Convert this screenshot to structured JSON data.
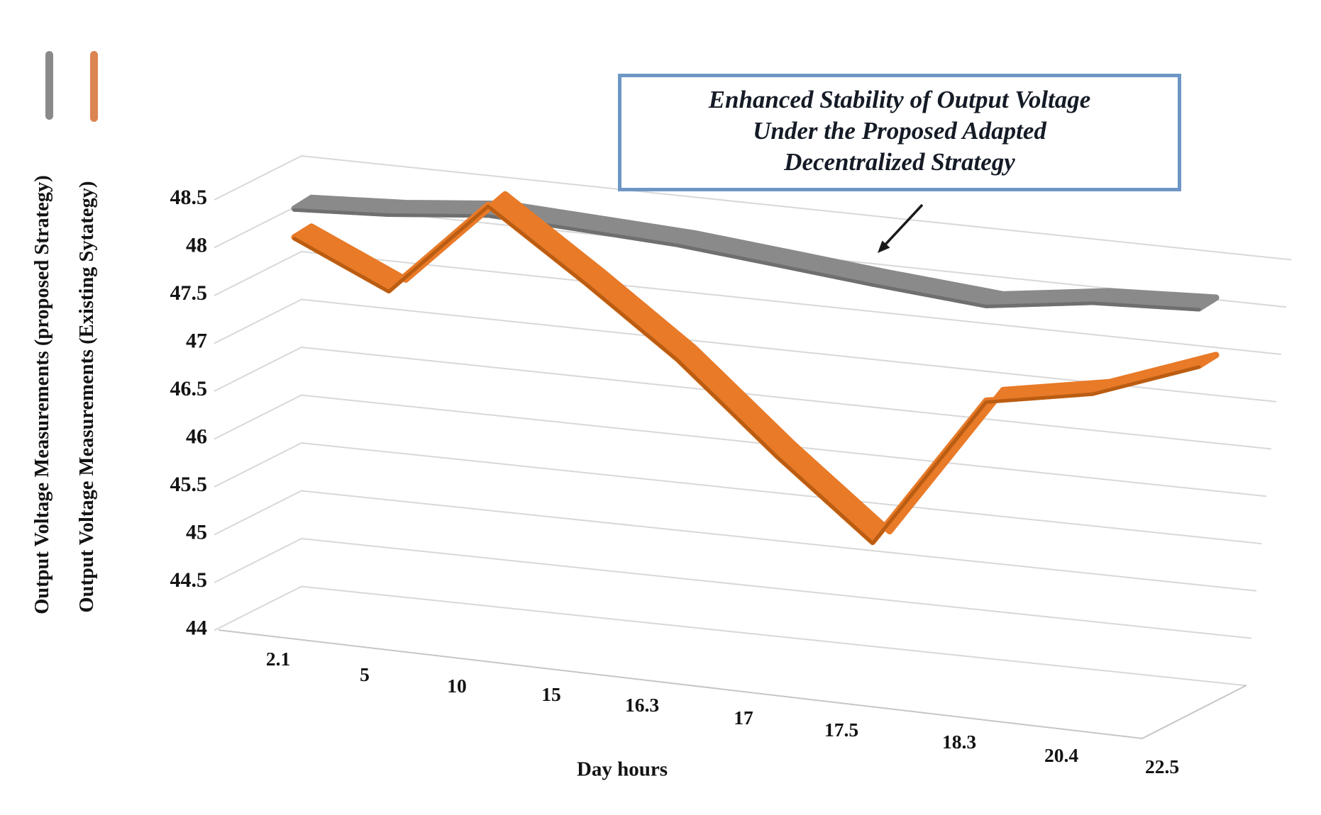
{
  "chart_data": {
    "type": "line",
    "projection": "3d",
    "title": "Enhanced Stability of Output Voltage Under the Proposed Adapted Decentralized Strategy",
    "title_lines": [
      "Enhanced Stability of Output Voltage",
      "Under the Proposed Adapted",
      "Decentralized Strategy"
    ],
    "xlabel": "Day hours",
    "categories": [
      "2.1",
      "5",
      "10",
      "15",
      "16.3",
      "17",
      "17.5",
      "18.3",
      "20.4",
      "22.5"
    ],
    "yticks": [
      "48.5",
      "48",
      "47.5",
      "47",
      "46.5",
      "46",
      "45.5",
      "45",
      "44.5",
      "44"
    ],
    "ylim": [
      44,
      48.5
    ],
    "ytick_step": 0.5,
    "grid": true,
    "legend_position": "left-rotated",
    "series": [
      {
        "name": "Output Voltage Measurements (proposed Strategy)",
        "color": "#8A8A8A",
        "edge_color": "#6C6C6C",
        "legend_color": "#8A8A8A",
        "values": [
          47.85,
          47.9,
          48.0,
          47.95,
          47.9,
          47.8,
          47.7,
          47.6,
          47.75,
          47.8
        ]
      },
      {
        "name": "Output Voltage Measurements (Existing Sytategy)",
        "color": "#E87A28",
        "edge_color": "#B55A10",
        "legend_color": "#DC8552",
        "values": [
          47.55,
          47.1,
          48.1,
          47.4,
          46.7,
          45.8,
          45.0,
          46.6,
          46.8,
          47.2
        ]
      }
    ],
    "annotation": {
      "arrow_points_to_series": "Output Voltage Measurements (proposed Strategy)"
    }
  },
  "colors": {
    "title_border": "#6D96C5",
    "title_text": "#151B26",
    "grid": "#D8D8D8",
    "floor_edge": "#C6C6C6",
    "tick_text": "#131313",
    "arrow": "#1a1a1a"
  }
}
